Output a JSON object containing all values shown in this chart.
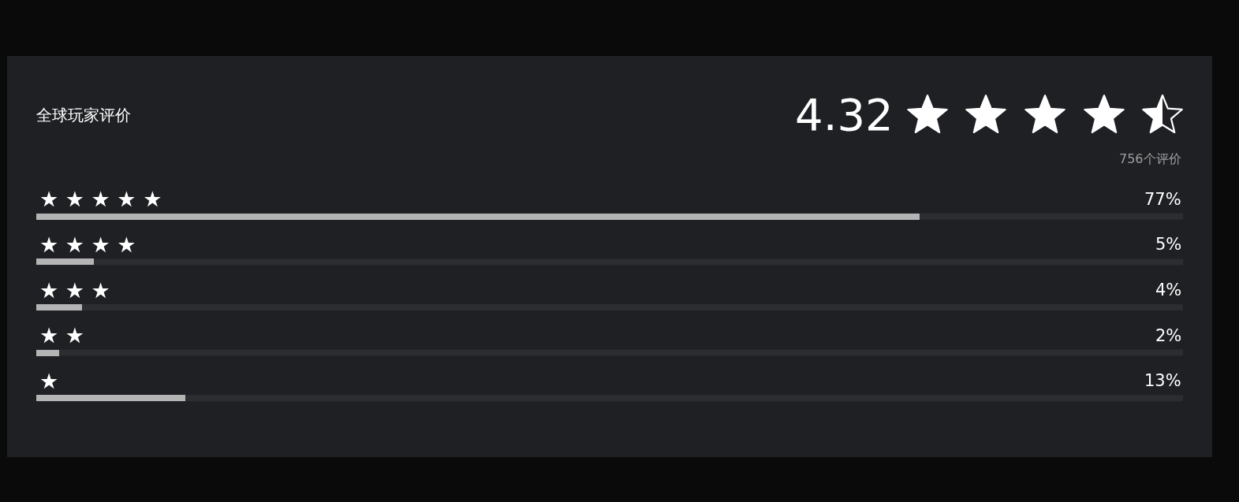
{
  "chart_data": {
    "type": "bar",
    "orientation": "horizontal",
    "title": "全球玩家评价",
    "annotations": [
      "4.32",
      "756个评价"
    ],
    "categories": [
      "★ ★ ★ ★ ★",
      "★ ★ ★ ★",
      "★ ★ ★",
      "★ ★",
      "★"
    ],
    "values": [
      77,
      5,
      4,
      2,
      13
    ],
    "value_labels": [
      "77%",
      "5%",
      "4%",
      "2%",
      "13%"
    ],
    "color": "#b4b4b4",
    "xlim": [
      0,
      100
    ],
    "tick_labels": "y"
  }
}
